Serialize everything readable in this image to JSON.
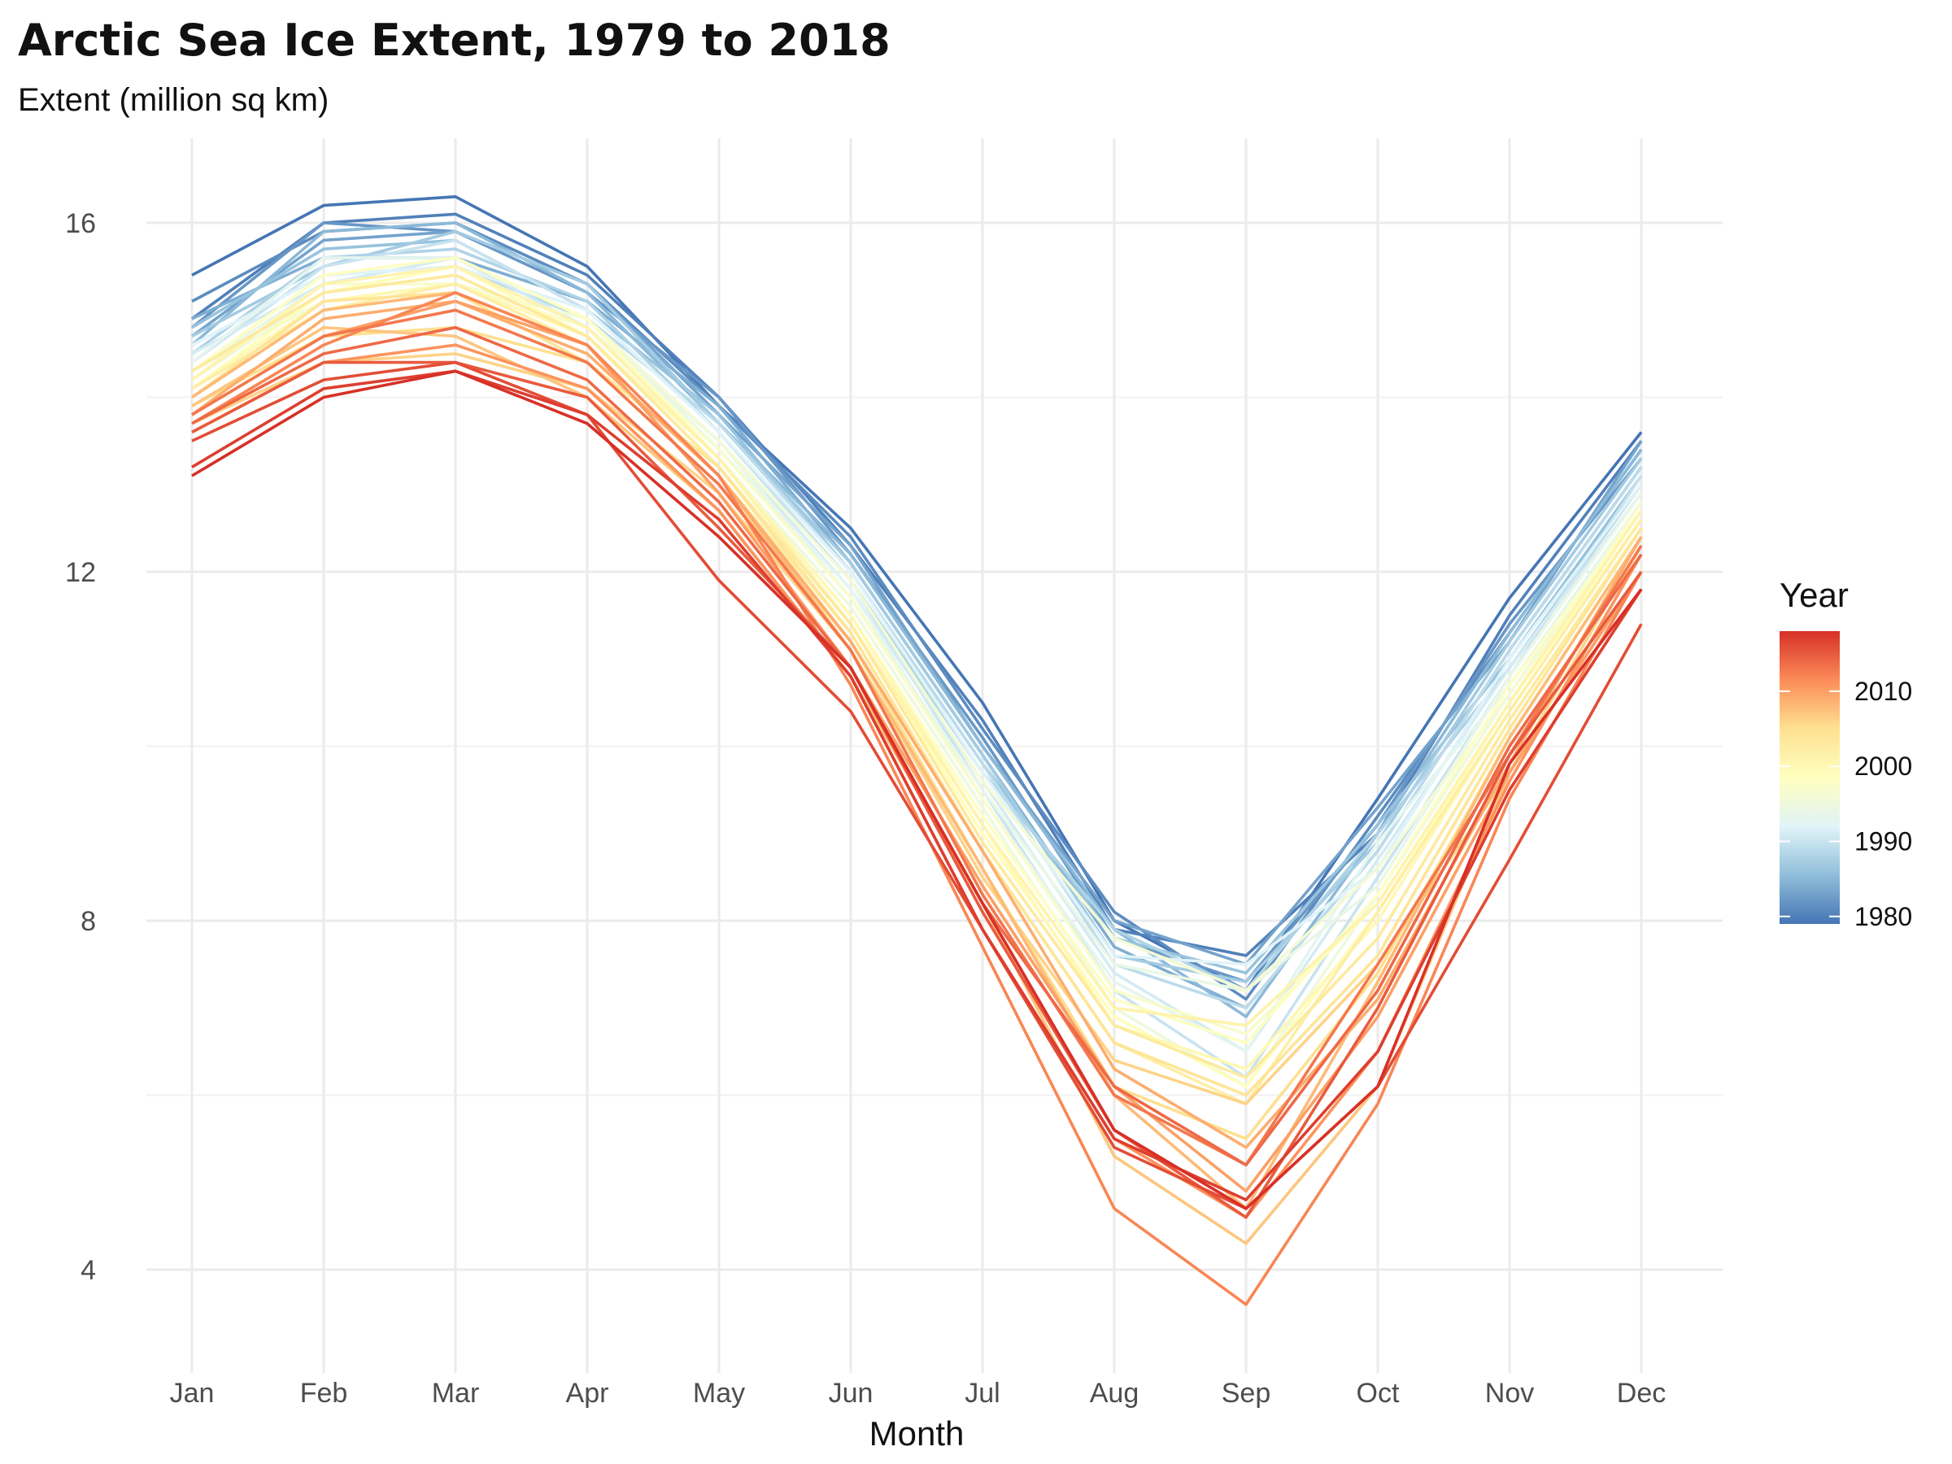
{
  "chart_data": {
    "type": "line",
    "title": "Arctic Sea Ice Extent, 1979 to 2018",
    "subtitle": "Extent (million sq km)",
    "xlabel": "Month",
    "ylabel": "",
    "ylim": [
      3.0,
      17.0
    ],
    "y_ticks": [
      4,
      8,
      12,
      16
    ],
    "grid": true,
    "categories": [
      "Jan",
      "Feb",
      "Mar",
      "Apr",
      "May",
      "Jun",
      "Jul",
      "Aug",
      "Sep",
      "Oct",
      "Nov",
      "Dec"
    ],
    "legend": {
      "title": "Year",
      "type": "continuous-colorbar",
      "placement": "right",
      "range": [
        1979,
        2018
      ],
      "ticks": [
        "1980",
        "1990",
        "2000",
        "2010"
      ],
      "colors": [
        "#4575b4",
        "#91bfdb",
        "#e0f3f8",
        "#ffffbf",
        "#fee090",
        "#fc8d59",
        "#d73027"
      ]
    },
    "series": [
      {
        "name": "1979",
        "values": [
          15.4,
          16.2,
          16.3,
          15.5,
          13.9,
          12.5,
          10.5,
          8.0,
          7.2,
          9.4,
          11.7,
          13.6
        ]
      },
      {
        "name": "1980",
        "values": [
          14.9,
          16.0,
          16.1,
          15.4,
          14.0,
          12.3,
          10.3,
          7.9,
          7.6,
          9.0,
          11.5,
          13.5
        ]
      },
      {
        "name": "1981",
        "values": [
          15.1,
          15.9,
          16.0,
          15.3,
          13.9,
          12.4,
          10.2,
          8.1,
          7.1,
          9.2,
          11.3,
          13.4
        ]
      },
      {
        "name": "1982",
        "values": [
          14.8,
          16.0,
          15.9,
          15.2,
          14.0,
          12.2,
          10.1,
          7.8,
          7.3,
          9.1,
          11.4,
          13.3
        ]
      },
      {
        "name": "1983",
        "values": [
          14.7,
          15.8,
          15.9,
          15.3,
          13.8,
          12.3,
          10.0,
          8.0,
          7.5,
          9.3,
          11.2,
          13.5
        ]
      },
      {
        "name": "1984",
        "values": [
          14.9,
          15.6,
          15.6,
          15.1,
          13.9,
          12.1,
          9.9,
          7.7,
          7.0,
          8.8,
          11.1,
          13.2
        ]
      },
      {
        "name": "1985",
        "values": [
          14.6,
          15.9,
          16.0,
          15.2,
          13.7,
          12.2,
          10.0,
          7.9,
          6.9,
          9.0,
          11.3,
          13.4
        ]
      },
      {
        "name": "1986",
        "values": [
          14.8,
          15.7,
          15.8,
          15.0,
          13.8,
          12.0,
          9.8,
          7.8,
          7.4,
          9.1,
          11.0,
          13.1
        ]
      },
      {
        "name": "1987",
        "values": [
          14.7,
          15.5,
          15.9,
          15.3,
          13.7,
          12.1,
          9.9,
          7.6,
          7.3,
          8.9,
          11.2,
          13.3
        ]
      },
      {
        "name": "1988",
        "values": [
          14.5,
          15.6,
          15.7,
          15.1,
          13.6,
          11.9,
          9.7,
          7.9,
          7.2,
          9.0,
          10.9,
          13.0
        ]
      },
      {
        "name": "1989",
        "values": [
          14.6,
          15.4,
          15.5,
          14.9,
          13.7,
          12.0,
          9.8,
          7.5,
          7.0,
          8.8,
          11.1,
          13.2
        ]
      },
      {
        "name": "1990",
        "values": [
          14.4,
          15.5,
          15.8,
          15.0,
          13.6,
          11.9,
          9.5,
          7.2,
          6.2,
          8.5,
          10.8,
          13.1
        ]
      },
      {
        "name": "1991",
        "values": [
          14.5,
          15.3,
          15.6,
          14.8,
          13.5,
          11.8,
          9.6,
          7.4,
          6.5,
          8.7,
          10.9,
          12.9
        ]
      },
      {
        "name": "1992",
        "values": [
          14.6,
          15.4,
          15.5,
          15.0,
          13.6,
          12.0,
          9.7,
          7.6,
          7.5,
          8.6,
          11.0,
          13.0
        ]
      },
      {
        "name": "1993",
        "values": [
          14.4,
          15.6,
          15.6,
          14.9,
          13.4,
          11.8,
          9.4,
          7.3,
          6.5,
          8.9,
          10.7,
          12.8
        ]
      },
      {
        "name": "1994",
        "values": [
          14.3,
          15.3,
          15.5,
          14.8,
          13.5,
          11.7,
          9.5,
          7.5,
          7.2,
          8.4,
          10.8,
          12.9
        ]
      },
      {
        "name": "1995",
        "values": [
          14.2,
          15.2,
          15.4,
          14.7,
          13.3,
          11.6,
          9.3,
          7.0,
          6.1,
          8.3,
          10.6,
          12.8
        ]
      },
      {
        "name": "1996",
        "values": [
          14.3,
          15.1,
          15.3,
          14.9,
          13.5,
          11.9,
          9.6,
          7.8,
          7.2,
          8.6,
          10.6,
          12.7
        ]
      },
      {
        "name": "1997",
        "values": [
          14.2,
          15.3,
          15.3,
          14.8,
          13.4,
          11.7,
          9.4,
          7.2,
          6.7,
          8.2,
          10.5,
          12.8
        ]
      },
      {
        "name": "1998",
        "values": [
          14.3,
          15.4,
          15.6,
          14.9,
          13.3,
          11.5,
          9.2,
          7.1,
          6.6,
          8.3,
          10.7,
          12.7
        ]
      },
      {
        "name": "1999",
        "values": [
          14.1,
          15.2,
          15.5,
          14.7,
          13.2,
          11.4,
          9.0,
          6.9,
          6.1,
          8.1,
          10.5,
          12.6
        ]
      },
      {
        "name": "2000",
        "values": [
          14.1,
          15.1,
          15.3,
          14.7,
          13.3,
          11.5,
          9.1,
          6.8,
          6.3,
          8.0,
          10.4,
          12.6
        ]
      },
      {
        "name": "2001",
        "values": [
          14.2,
          15.3,
          15.5,
          14.8,
          13.3,
          11.4,
          9.1,
          7.0,
          6.8,
          8.2,
          10.5,
          12.7
        ]
      },
      {
        "name": "2002",
        "values": [
          14.1,
          15.0,
          15.3,
          14.6,
          13.1,
          11.3,
          8.8,
          6.6,
          5.9,
          8.1,
          10.4,
          12.6
        ]
      },
      {
        "name": "2003",
        "values": [
          14.3,
          15.2,
          15.4,
          14.7,
          13.2,
          11.4,
          8.9,
          6.8,
          6.2,
          7.8,
          10.3,
          12.5
        ]
      },
      {
        "name": "2004",
        "values": [
          14.0,
          15.1,
          15.2,
          14.4,
          13.2,
          11.3,
          8.8,
          6.6,
          6.0,
          7.6,
          10.2,
          12.5
        ]
      },
      {
        "name": "2005",
        "values": [
          13.9,
          14.7,
          14.8,
          14.4,
          13.0,
          11.2,
          8.6,
          6.1,
          5.5,
          7.4,
          10.1,
          12.4
        ]
      },
      {
        "name": "2006",
        "values": [
          13.7,
          14.4,
          14.5,
          14.1,
          12.9,
          11.1,
          8.5,
          6.4,
          5.9,
          7.5,
          9.7,
          12.3
        ]
      },
      {
        "name": "2007",
        "values": [
          13.9,
          14.8,
          14.7,
          14.0,
          12.7,
          10.8,
          8.2,
          5.3,
          4.3,
          6.1,
          9.7,
          12.0
        ]
      },
      {
        "name": "2008",
        "values": [
          14.0,
          15.0,
          15.2,
          14.6,
          13.1,
          11.1,
          8.6,
          6.0,
          4.7,
          7.3,
          10.1,
          12.4
        ]
      },
      {
        "name": "2009",
        "values": [
          13.8,
          14.9,
          15.1,
          14.5,
          13.1,
          11.2,
          8.8,
          6.3,
          5.4,
          7.1,
          9.8,
          12.4
        ]
      },
      {
        "name": "2010",
        "values": [
          13.8,
          14.7,
          15.1,
          14.6,
          12.9,
          10.9,
          8.4,
          6.1,
          4.9,
          6.9,
          9.7,
          12.0
        ]
      },
      {
        "name": "2011",
        "values": [
          13.6,
          14.4,
          14.6,
          14.1,
          12.7,
          10.8,
          7.9,
          5.5,
          4.6,
          6.5,
          9.6,
          12.2
        ]
      },
      {
        "name": "2012",
        "values": [
          13.7,
          14.6,
          15.2,
          14.6,
          13.1,
          10.7,
          7.7,
          4.7,
          3.6,
          5.9,
          9.4,
          12.0
        ]
      },
      {
        "name": "2013",
        "values": [
          13.8,
          14.7,
          15.0,
          14.4,
          13.0,
          11.1,
          8.3,
          6.0,
          5.2,
          7.5,
          9.9,
          12.3
        ]
      },
      {
        "name": "2014",
        "values": [
          13.7,
          14.5,
          14.8,
          14.2,
          12.8,
          10.9,
          8.2,
          6.1,
          5.2,
          7.2,
          10.0,
          12.2
        ]
      },
      {
        "name": "2015",
        "values": [
          13.6,
          14.4,
          14.4,
          14.0,
          12.5,
          10.9,
          8.1,
          5.6,
          4.6,
          7.0,
          9.9,
          12.0
        ]
      },
      {
        "name": "2016",
        "values": [
          13.5,
          14.2,
          14.4,
          13.8,
          11.9,
          10.4,
          7.9,
          5.4,
          4.7,
          6.1,
          8.7,
          11.4
        ]
      },
      {
        "name": "2017",
        "values": [
          13.2,
          14.1,
          14.3,
          13.8,
          12.6,
          10.8,
          7.9,
          5.5,
          4.8,
          6.5,
          9.5,
          11.8
        ]
      },
      {
        "name": "2018",
        "values": [
          13.1,
          14.0,
          14.3,
          13.7,
          12.4,
          10.9,
          8.2,
          5.6,
          4.7,
          6.1,
          9.8,
          11.8
        ]
      }
    ]
  }
}
